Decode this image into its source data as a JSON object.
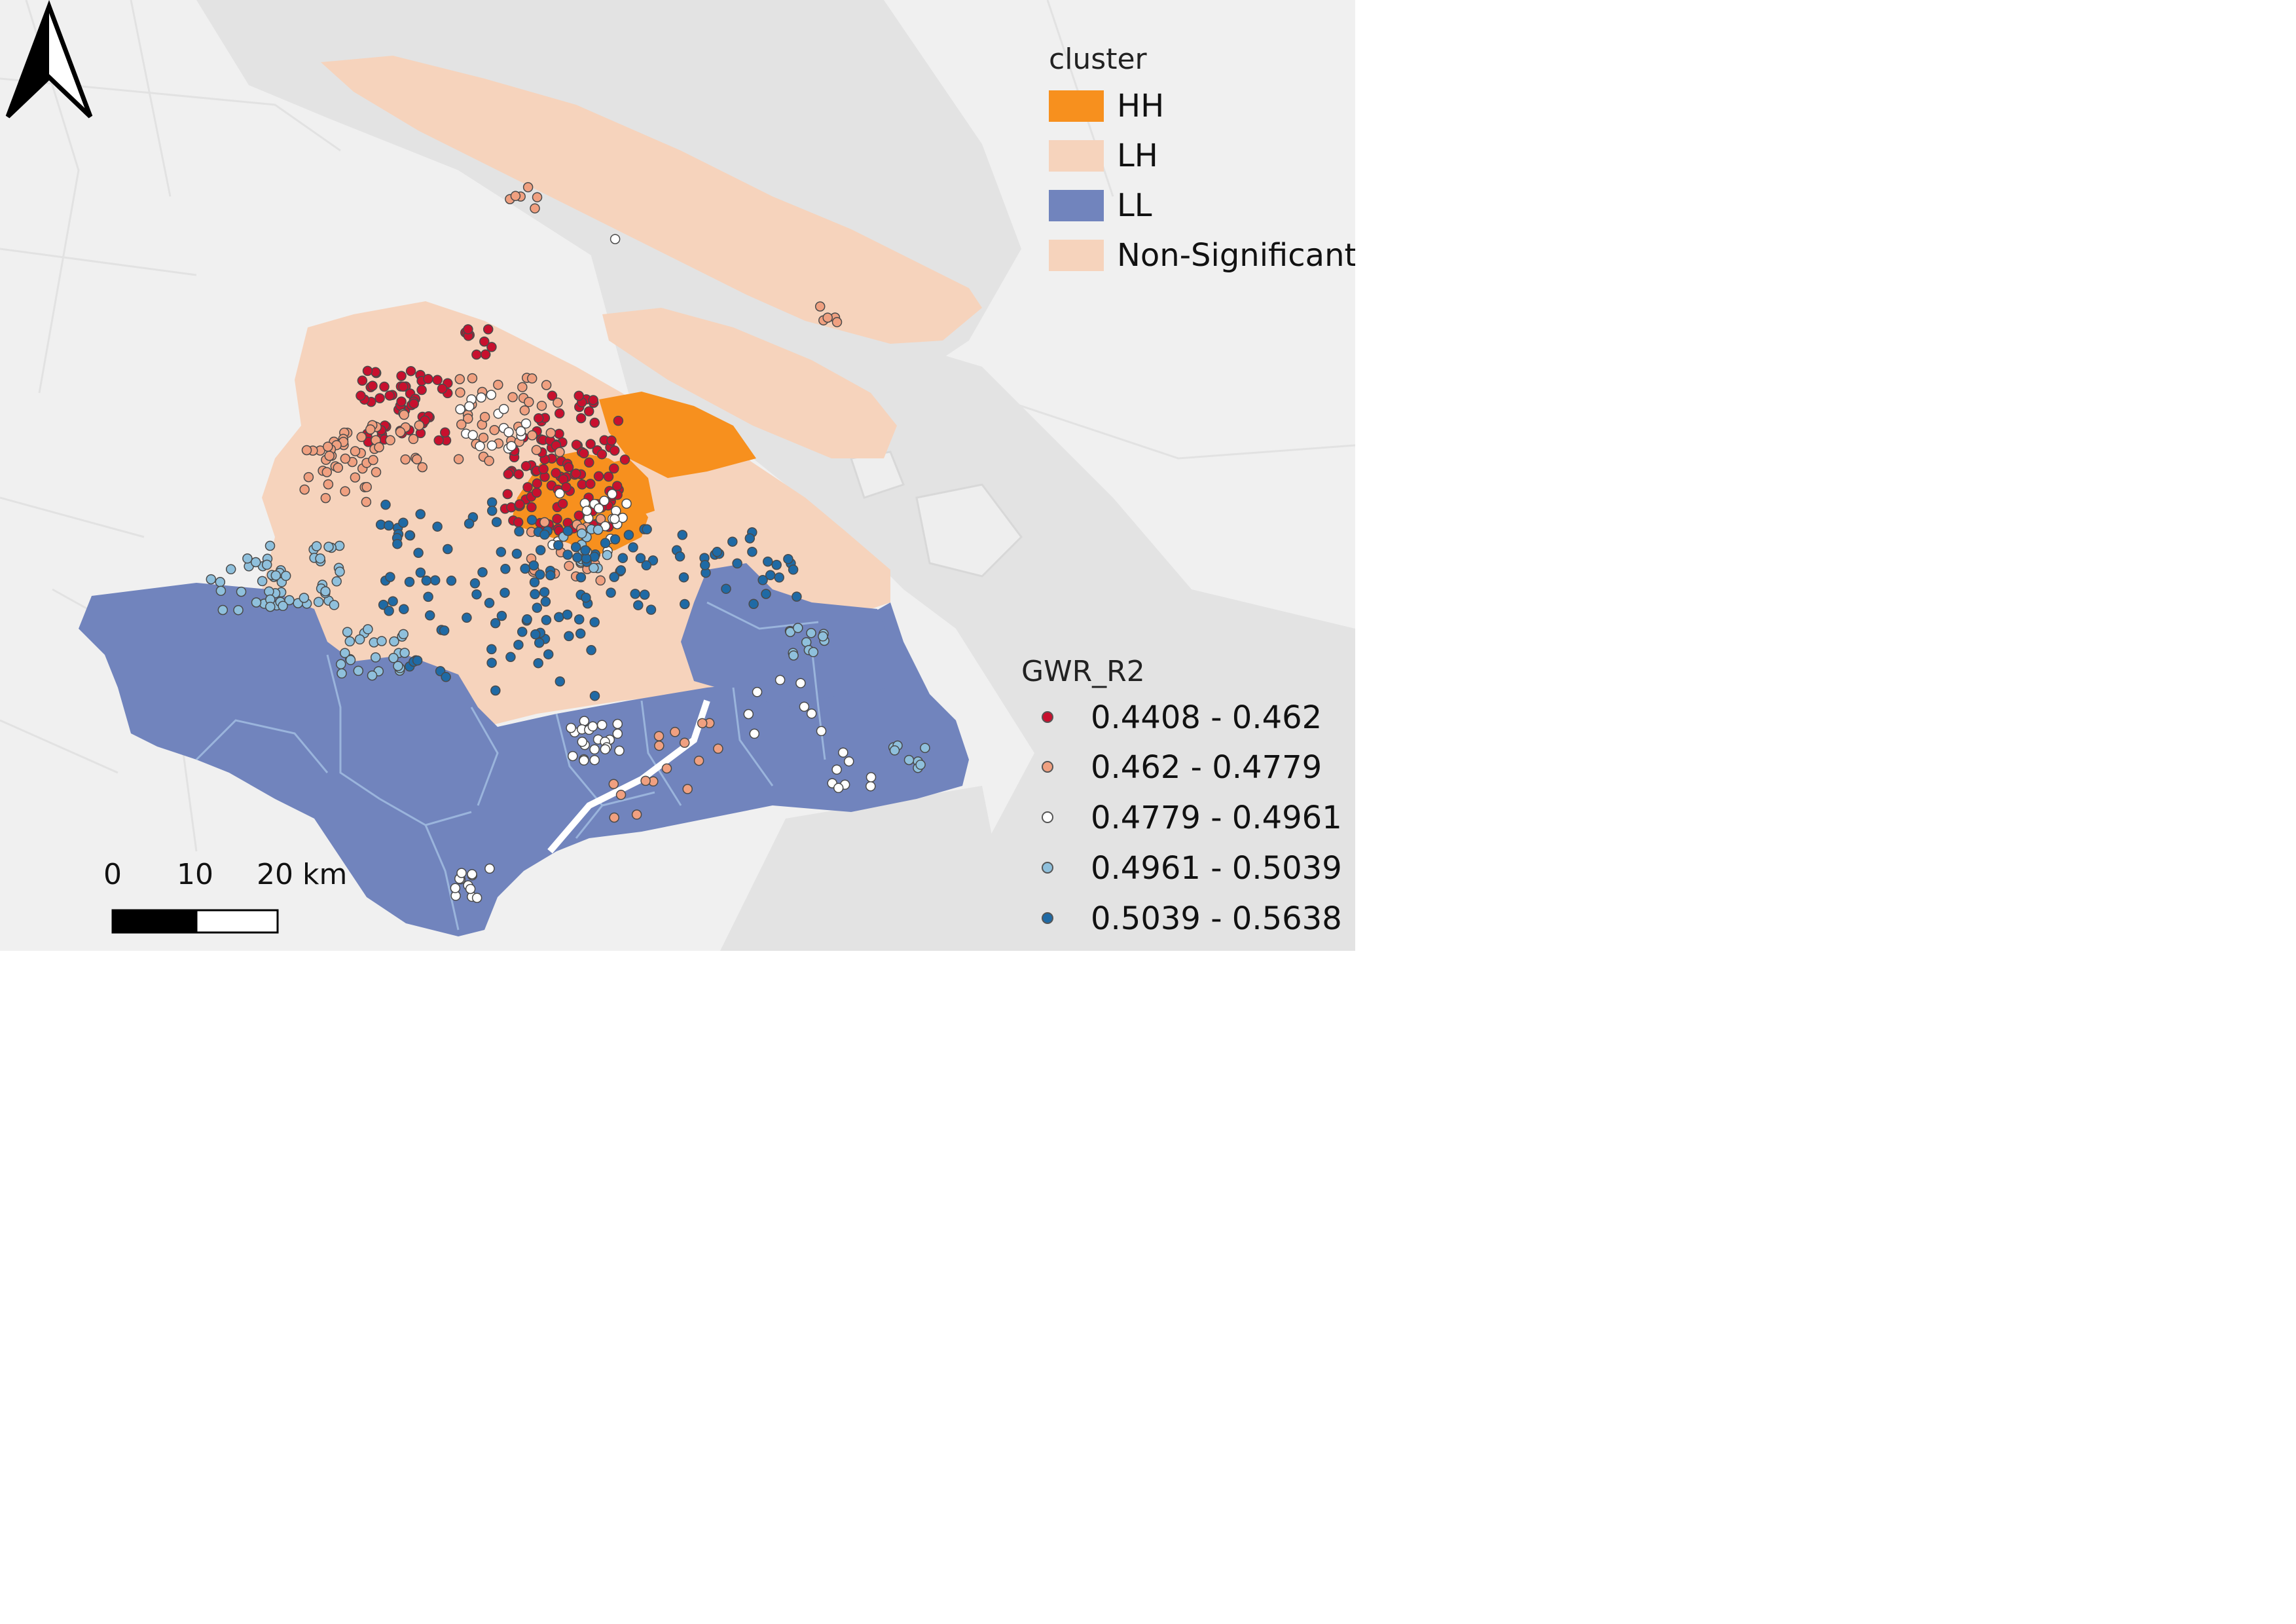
{
  "map": {
    "scale_bar": {
      "labels": [
        "0",
        "10",
        "20 km"
      ]
    },
    "cluster_legend": {
      "title": "cluster",
      "items": [
        {
          "label": "HH",
          "color": "#f7901e"
        },
        {
          "label": "LH",
          "color": "#f6d3bc"
        },
        {
          "label": "LL",
          "color": "#7184bd"
        },
        {
          "label": "Non-Significant",
          "color": "#f6d3bc"
        }
      ]
    },
    "gwr_legend": {
      "title": "GWR_R2",
      "items": [
        {
          "label": "0.4408 - 0.462",
          "color": "#c8102e"
        },
        {
          "label": "0.462 - 0.4779",
          "color": "#f0a080"
        },
        {
          "label": "0.4779 - 0.4961",
          "color": "#ffffff"
        },
        {
          "label": "0.4961 - 0.5039",
          "color": "#8fc0dc"
        },
        {
          "label": "0.5039 - 0.5638",
          "color": "#1f6aa5"
        }
      ]
    },
    "colors": {
      "land": "#f6d3bc",
      "hh": "#f7901e",
      "ll": "#7184bd",
      "ll_border": "#9ab4dc",
      "water": "#e3e3e3",
      "background": "#ededed"
    },
    "icons": [
      "north-arrow-icon",
      "scale-bar-icon"
    ]
  }
}
